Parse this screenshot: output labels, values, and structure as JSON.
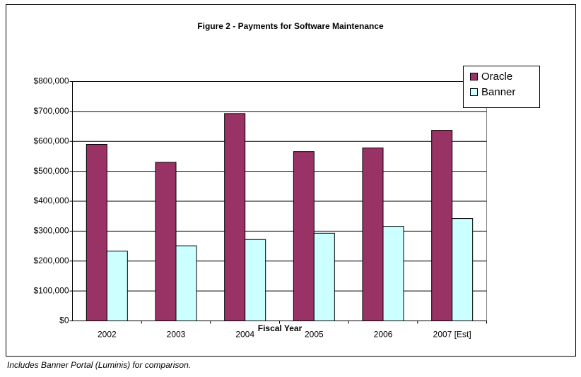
{
  "chart_data": {
    "type": "bar",
    "title": "Figure 2 - Payments for Software Maintenance",
    "x_label": "Fiscal Year",
    "categories": [
      "2002",
      "2003",
      "2004",
      "2005",
      "2006",
      "2007 [Est]"
    ],
    "series": [
      {
        "name": "Oracle",
        "color": "#993366",
        "values": [
          590000,
          530000,
          693000,
          566000,
          578000,
          637000
        ]
      },
      {
        "name": "Banner",
        "color": "#ccffff",
        "values": [
          233000,
          251000,
          272000,
          293000,
          316000,
          342000
        ]
      }
    ],
    "ylim": [
      0,
      800000
    ],
    "yticks": [
      {
        "value": 0,
        "label": "$0"
      },
      {
        "value": 100000,
        "label": "$100,000"
      },
      {
        "value": 200000,
        "label": "$200,000"
      },
      {
        "value": 300000,
        "label": "$300,000"
      },
      {
        "value": 400000,
        "label": "$400,000"
      },
      {
        "value": 500000,
        "label": "$500,000"
      },
      {
        "value": 600000,
        "label": "$600,000"
      },
      {
        "value": 700000,
        "label": "$700,000"
      },
      {
        "value": 800000,
        "label": "$800,000"
      }
    ],
    "grid": true,
    "legend": "upper right",
    "note": "Includes Banner Portal (Luminis) for comparison."
  }
}
